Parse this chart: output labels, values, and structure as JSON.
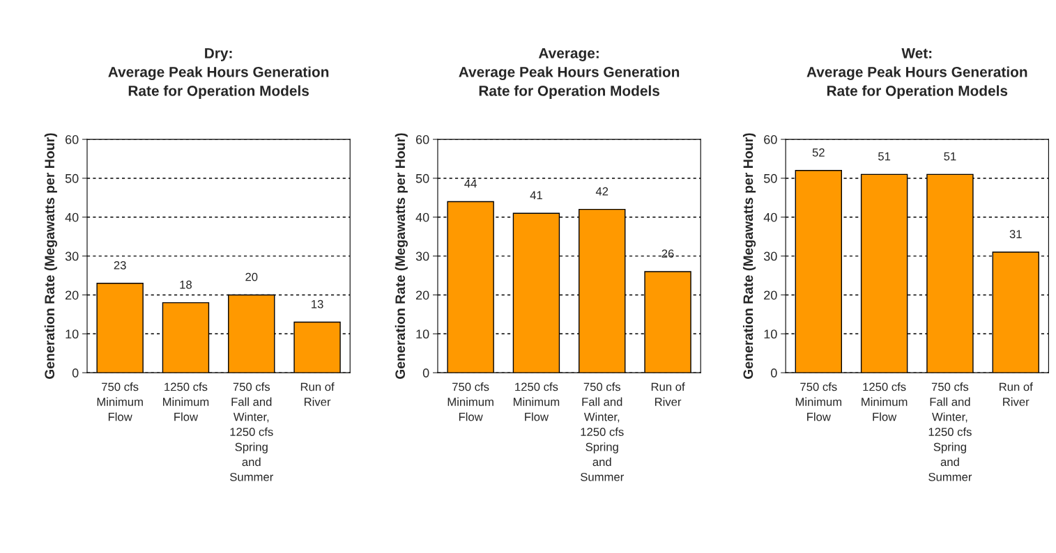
{
  "chart_data": [
    {
      "type": "bar",
      "title": "Dry:\nAverage Peak Hours Generation\nRate for Operation Models",
      "ylabel": "Generation Rate (Megawatts per Hour)",
      "categories": [
        "750 cfs\nMinimum\nFlow",
        "1250 cfs\nMinimum\nFlow",
        "750 cfs\nFall and\nWinter,\n1250 cfs\nSpring\nand\nSummer",
        "Run of\nRiver"
      ],
      "values": [
        23,
        18,
        20,
        13
      ],
      "color": "#ff9900",
      "ylim": [
        0,
        60
      ],
      "yticks": [
        0,
        10,
        20,
        30,
        40,
        50,
        60
      ],
      "grid": "y",
      "data_labels": true
    },
    {
      "type": "bar",
      "title": "Average:\nAverage Peak Hours Generation\nRate for Operation Models",
      "ylabel": "Generation Rate (Megawatts per Hour)",
      "categories": [
        "750 cfs\nMinimum\nFlow",
        "1250 cfs\nMinimum\nFlow",
        "750 cfs\nFall and\nWinter,\n1250 cfs\nSpring\nand\nSummer",
        "Run of\nRiver"
      ],
      "values": [
        44,
        41,
        42,
        26
      ],
      "color": "#ff9900",
      "ylim": [
        0,
        60
      ],
      "yticks": [
        0,
        10,
        20,
        30,
        40,
        50,
        60
      ],
      "grid": "y",
      "data_labels": true
    },
    {
      "type": "bar",
      "title": "Wet:\nAverage Peak Hours Generation\nRate for Operation Models",
      "ylabel": "Generation Rate (Megawatts per Hour)",
      "categories": [
        "750 cfs\nMinimum\nFlow",
        "1250 cfs\nMinimum\nFlow",
        "750 cfs\nFall and\nWinter,\n1250 cfs\nSpring\nand\nSummer",
        "Run of\nRiver"
      ],
      "values": [
        52,
        51,
        51,
        31
      ],
      "color": "#ff9900",
      "ylim": [
        0,
        60
      ],
      "yticks": [
        0,
        10,
        20,
        30,
        40,
        50,
        60
      ],
      "grid": "y",
      "data_labels": true
    }
  ]
}
